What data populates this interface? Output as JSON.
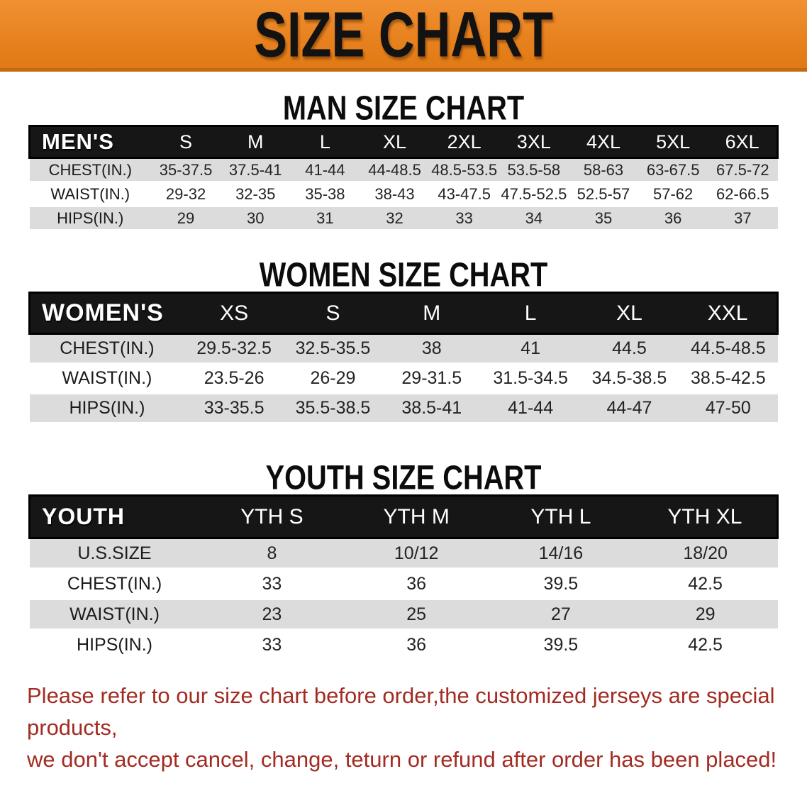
{
  "banner": {
    "title": "SIZE CHART"
  },
  "colors": {
    "banner_orange": "#e8821f",
    "banner_edge": "#c4690f",
    "table_header_black": "#161616",
    "row_stripe_gray": "#dcdcdc",
    "disclaimer_red": "#a32b22"
  },
  "sections": [
    {
      "heading": "MAN SIZE CHART",
      "table": {
        "label": "MEN'S",
        "sizes": [
          "S",
          "M",
          "L",
          "XL",
          "2XL",
          "3XL",
          "4XL",
          "5XL",
          "6XL"
        ],
        "rows": [
          {
            "label": "CHEST(IN.)",
            "values": [
              "35-37.5",
              "37.5-41",
              "41-44",
              "44-48.5",
              "48.5-53.5",
              "53.5-58",
              "58-63",
              "63-67.5",
              "67.5-72"
            ]
          },
          {
            "label": "WAIST(IN.)",
            "values": [
              "29-32",
              "32-35",
              "35-38",
              "38-43",
              "43-47.5",
              "47.5-52.5",
              "52.5-57",
              "57-62",
              "62-66.5"
            ]
          },
          {
            "label": "HIPS(IN.)",
            "values": [
              "29",
              "30",
              "31",
              "32",
              "33",
              "34",
              "35",
              "36",
              "37"
            ]
          }
        ]
      }
    },
    {
      "heading": "WOMEN SIZE CHART",
      "table": {
        "label": "WOMEN'S",
        "sizes": [
          "XS",
          "S",
          "M",
          "L",
          "XL",
          "XXL"
        ],
        "rows": [
          {
            "label": "CHEST(IN.)",
            "values": [
              "29.5-32.5",
              "32.5-35.5",
              "38",
              "41",
              "44.5",
              "44.5-48.5"
            ]
          },
          {
            "label": "WAIST(IN.)",
            "values": [
              "23.5-26",
              "26-29",
              "29-31.5",
              "31.5-34.5",
              "34.5-38.5",
              "38.5-42.5"
            ]
          },
          {
            "label": "HIPS(IN.)",
            "values": [
              "33-35.5",
              "35.5-38.5",
              "38.5-41",
              "41-44",
              "44-47",
              "47-50"
            ]
          }
        ]
      }
    },
    {
      "heading": "YOUTH SIZE CHART",
      "table": {
        "label": "YOUTH",
        "sizes": [
          "YTH S",
          "YTH M",
          "YTH L",
          "YTH XL"
        ],
        "rows": [
          {
            "label": "U.S.SIZE",
            "values": [
              "8",
              "10/12",
              "14/16",
              "18/20"
            ]
          },
          {
            "label": "CHEST(IN.)",
            "values": [
              "33",
              "36",
              "39.5",
              "42.5"
            ]
          },
          {
            "label": "WAIST(IN.)",
            "values": [
              "23",
              "25",
              "27",
              "29"
            ]
          },
          {
            "label": "HIPS(IN.)",
            "values": [
              "33",
              "36",
              "39.5",
              "42.5"
            ]
          }
        ]
      }
    }
  ],
  "disclaimer": {
    "line1": "Please refer to our size chart before order,the customized jerseys are special products,",
    "line2": "we don't accept cancel, change, teturn or refund after order has been placed!"
  }
}
